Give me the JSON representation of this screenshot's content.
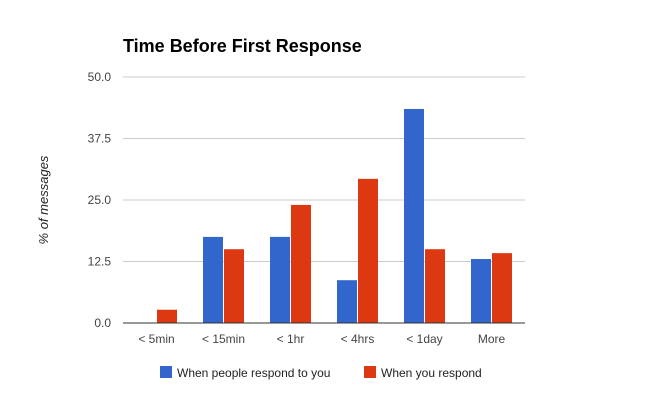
{
  "chart_data": {
    "type": "bar",
    "title": "Time Before First Response",
    "xlabel": "",
    "ylabel": "% of messages",
    "ylim": [
      0,
      50
    ],
    "y_ticks": [
      "0.0",
      "12.5",
      "25.0",
      "37.5",
      "50.0"
    ],
    "y_tick_values": [
      0,
      12.5,
      25,
      37.5,
      50
    ],
    "grid": true,
    "legend_position": "bottom",
    "categories": [
      "< 5min",
      "< 15min",
      "< 1hr",
      "< 4hrs",
      "< 1day",
      "More"
    ],
    "series": [
      {
        "name": "When people respond to you",
        "color": "#3366cc",
        "values": [
          0,
          17.5,
          17.5,
          8.7,
          43.5,
          13.0
        ]
      },
      {
        "name": "When you respond",
        "color": "#dc3912",
        "values": [
          2.7,
          15.0,
          24.0,
          29.3,
          15.0,
          14.2
        ]
      }
    ],
    "colors": {
      "grid": "#cccccc",
      "axis": "#333333"
    }
  }
}
